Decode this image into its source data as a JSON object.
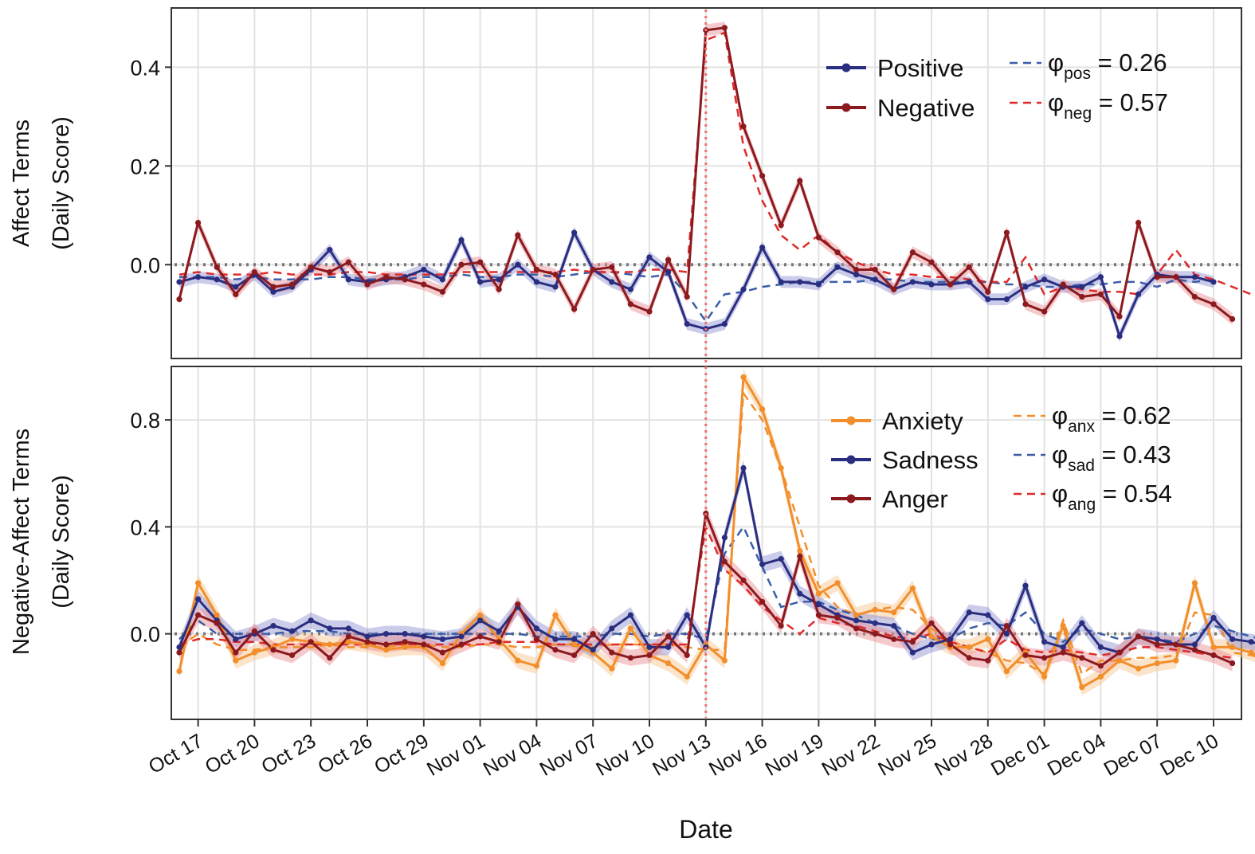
{
  "chart_data": [
    {
      "type": "line",
      "ylabel_lines": [
        "Affect Terms",
        "(Daily Score)"
      ],
      "ylim": [
        -0.19,
        0.52
      ],
      "yticks": [
        0.0,
        0.2,
        0.4
      ],
      "ytick_labels": [
        "0.0",
        "0.2",
        "0.4"
      ],
      "reference_line": 0.0,
      "grid": true,
      "legend_position": "top-right",
      "series": [
        {
          "name": "Positive",
          "color": "#2a2e80",
          "band_color": "#8c8fd0",
          "values": [
            -0.035,
            -0.025,
            -0.03,
            -0.045,
            -0.02,
            -0.055,
            -0.045,
            -0.01,
            0.03,
            -0.03,
            -0.035,
            -0.03,
            -0.025,
            -0.01,
            -0.03,
            0.05,
            -0.035,
            -0.03,
            0.0,
            -0.035,
            -0.045,
            0.065,
            -0.01,
            -0.035,
            -0.05,
            0.015,
            -0.015,
            -0.12,
            -0.13,
            -0.12,
            -0.05,
            0.035,
            -0.035,
            -0.035,
            -0.04,
            -0.005,
            -0.02,
            -0.03,
            -0.05,
            -0.035,
            -0.04,
            -0.04,
            -0.035,
            -0.07,
            -0.07,
            -0.045,
            -0.03,
            -0.045,
            -0.045,
            -0.025,
            -0.145,
            -0.06,
            -0.02,
            -0.025,
            -0.025,
            -0.035
          ]
        },
        {
          "name": "Negative",
          "color": "#8b1a1f",
          "band_color": "#e88a90",
          "values": [
            -0.07,
            0.085,
            -0.005,
            -0.06,
            -0.015,
            -0.045,
            -0.04,
            -0.005,
            -0.015,
            0.005,
            -0.04,
            -0.025,
            -0.03,
            -0.04,
            -0.055,
            0.0,
            0.005,
            -0.05,
            0.06,
            -0.01,
            -0.02,
            -0.09,
            -0.01,
            -0.005,
            -0.08,
            -0.095,
            0.01,
            -0.065,
            0.475,
            0.48,
            0.28,
            0.18,
            0.08,
            0.17,
            0.055,
            0.025,
            -0.01,
            -0.01,
            -0.05,
            0.025,
            0.005,
            -0.04,
            -0.005,
            -0.055,
            0.065,
            -0.08,
            -0.095,
            -0.04,
            -0.065,
            -0.06,
            -0.105,
            0.085,
            -0.025,
            -0.025,
            -0.065,
            -0.08,
            -0.11
          ]
        }
      ],
      "fits": [
        {
          "label": "φ",
          "subscript": "pos",
          "value_text": "= 0.26",
          "color": "#3a5ea8",
          "values": [
            -0.025,
            -0.025,
            -0.025,
            -0.03,
            -0.025,
            -0.03,
            -0.03,
            -0.03,
            -0.025,
            -0.025,
            -0.03,
            -0.03,
            -0.03,
            -0.025,
            -0.025,
            -0.02,
            -0.025,
            -0.025,
            -0.02,
            -0.02,
            -0.025,
            -0.02,
            -0.015,
            -0.015,
            -0.02,
            -0.025,
            -0.02,
            -0.06,
            -0.115,
            -0.06,
            -0.055,
            -0.045,
            -0.04,
            -0.035,
            -0.035,
            -0.035,
            -0.035,
            -0.03,
            -0.03,
            -0.035,
            -0.035,
            -0.035,
            -0.035,
            -0.035,
            -0.04,
            -0.04,
            -0.045,
            -0.045,
            -0.04,
            -0.04,
            -0.035,
            -0.035,
            -0.045,
            -0.03,
            -0.035,
            -0.03
          ]
        },
        {
          "label": "φ",
          "subscript": "neg",
          "value_text": "= 0.57",
          "color": "#e02a2a",
          "values": [
            -0.02,
            -0.015,
            -0.02,
            -0.02,
            -0.02,
            -0.015,
            -0.02,
            -0.02,
            -0.02,
            -0.015,
            -0.015,
            -0.02,
            -0.02,
            -0.02,
            -0.02,
            -0.015,
            -0.015,
            -0.015,
            -0.015,
            -0.015,
            -0.015,
            -0.01,
            -0.015,
            -0.015,
            -0.015,
            -0.01,
            -0.01,
            -0.015,
            0.455,
            0.47,
            0.24,
            0.13,
            0.06,
            0.03,
            0.06,
            0.025,
            0.005,
            -0.01,
            -0.02,
            -0.02,
            -0.025,
            -0.025,
            -0.03,
            -0.035,
            -0.035,
            0.015,
            -0.06,
            -0.045,
            -0.05,
            -0.055,
            -0.055,
            -0.06,
            -0.02,
            0.03,
            -0.02,
            -0.03,
            -0.045,
            -0.06
          ]
        }
      ]
    },
    {
      "type": "line",
      "ylabel_lines": [
        "Negative-Affect Terms",
        "(Daily Score)"
      ],
      "xlabel": "Date",
      "ylim": [
        -0.32,
        1.0
      ],
      "yticks": [
        0.0,
        0.4,
        0.8
      ],
      "ytick_labels": [
        "0.0",
        "0.4",
        "0.8"
      ],
      "reference_line": 0.0,
      "grid": true,
      "legend_position": "top-right",
      "x_tick_labels": [
        "Oct 17",
        "Oct 20",
        "Oct 23",
        "Oct 26",
        "Oct 29",
        "Nov 01",
        "Nov 04",
        "Nov 07",
        "Nov 10",
        "Nov 13",
        "Nov 16",
        "Nov 19",
        "Nov 22",
        "Nov 25",
        "Nov 28",
        "Dec 01",
        "Dec 04",
        "Dec 07",
        "Dec 10"
      ],
      "event_date": "Nov 13",
      "series": [
        {
          "name": "Anxiety",
          "color": "#f28e2b",
          "band_color": "#f7c48a",
          "values": [
            -0.14,
            0.19,
            0.07,
            -0.1,
            -0.07,
            -0.05,
            -0.02,
            -0.03,
            -0.04,
            -0.03,
            -0.04,
            -0.06,
            -0.05,
            -0.05,
            -0.11,
            0.0,
            0.07,
            -0.02,
            -0.1,
            -0.12,
            0.07,
            -0.04,
            -0.07,
            -0.13,
            0.02,
            -0.08,
            -0.11,
            -0.16,
            -0.04,
            -0.1,
            0.96,
            0.84,
            0.62,
            0.31,
            0.15,
            0.19,
            0.07,
            0.09,
            0.08,
            0.17,
            -0.01,
            -0.05,
            -0.05,
            -0.02,
            -0.14,
            -0.07,
            -0.16,
            0.03,
            -0.2,
            -0.16,
            -0.1,
            -0.13,
            -0.11,
            -0.1,
            0.19,
            -0.05,
            -0.05,
            -0.07,
            -0.1,
            -0.13
          ]
        },
        {
          "name": "Sadness",
          "color": "#2a2e80",
          "band_color": "#8c8fd0",
          "values": [
            -0.05,
            0.13,
            0.05,
            -0.02,
            0.0,
            0.03,
            0.01,
            0.05,
            0.02,
            0.02,
            -0.01,
            0.0,
            0.0,
            -0.01,
            -0.02,
            -0.01,
            0.05,
            0.01,
            0.1,
            0.02,
            -0.02,
            -0.02,
            -0.06,
            0.02,
            0.07,
            -0.05,
            -0.05,
            0.07,
            -0.05,
            0.36,
            0.62,
            0.26,
            0.28,
            0.15,
            0.11,
            0.07,
            0.05,
            0.04,
            0.03,
            -0.07,
            -0.04,
            -0.02,
            0.08,
            0.07,
            0.0,
            0.18,
            -0.03,
            -0.05,
            0.04,
            -0.05,
            -0.07,
            -0.01,
            -0.02,
            -0.04,
            -0.04,
            0.06,
            -0.02,
            -0.03,
            -0.05,
            -0.07
          ]
        },
        {
          "name": "Anger",
          "color": "#8b1a1f",
          "band_color": "#e88a90",
          "values": [
            -0.07,
            0.07,
            0.04,
            -0.07,
            0.01,
            -0.06,
            -0.08,
            -0.03,
            -0.09,
            -0.01,
            -0.03,
            -0.04,
            -0.03,
            -0.04,
            -0.07,
            -0.04,
            -0.01,
            -0.03,
            0.11,
            -0.02,
            -0.06,
            -0.08,
            0.0,
            -0.07,
            -0.09,
            -0.08,
            -0.01,
            -0.08,
            0.45,
            0.27,
            0.2,
            0.12,
            0.03,
            0.29,
            0.07,
            0.06,
            0.02,
            0.0,
            -0.02,
            -0.03,
            0.04,
            -0.04,
            -0.09,
            -0.1,
            0.03,
            -0.08,
            -0.09,
            -0.07,
            -0.09,
            -0.12,
            -0.07,
            -0.01,
            -0.04,
            -0.04,
            -0.06,
            -0.08,
            -0.11
          ]
        }
      ],
      "fits": [
        {
          "label": "φ",
          "subscript": "anx",
          "value_text": "= 0.62",
          "color": "#f28e2b",
          "values": [
            -0.05,
            0.0,
            -0.04,
            -0.06,
            -0.06,
            -0.05,
            -0.05,
            -0.05,
            -0.04,
            -0.05,
            -0.05,
            -0.05,
            -0.04,
            -0.04,
            -0.05,
            -0.05,
            -0.04,
            -0.04,
            -0.05,
            -0.05,
            -0.04,
            -0.04,
            -0.05,
            -0.04,
            -0.04,
            -0.04,
            -0.04,
            -0.05,
            -0.06,
            -0.06,
            0.9,
            0.8,
            0.62,
            0.4,
            0.18,
            0.1,
            0.07,
            0.09,
            0.1,
            0.09,
            0.02,
            -0.03,
            -0.05,
            -0.07,
            -0.1,
            -0.11,
            -0.15,
            0.05,
            -0.15,
            -0.1,
            -0.1,
            -0.09,
            -0.09,
            -0.08,
            0.08,
            0.07,
            -0.07,
            -0.08,
            -0.1
          ]
        },
        {
          "label": "φ",
          "subscript": "sad",
          "value_text": "= 0.43",
          "color": "#3a5ea8",
          "values": [
            -0.02,
            0.05,
            0.0,
            0.0,
            0.0,
            0.0,
            0.01,
            0.01,
            0.01,
            0.0,
            0.0,
            0.0,
            0.0,
            0.0,
            0.0,
            0.0,
            0.0,
            0.0,
            0.0,
            -0.01,
            -0.01,
            -0.01,
            -0.01,
            0.0,
            0.0,
            -0.01,
            0.0,
            0.0,
            -0.02,
            0.3,
            0.4,
            0.25,
            0.1,
            0.12,
            0.12,
            0.09,
            0.07,
            0.04,
            0.03,
            0.0,
            -0.02,
            -0.02,
            0.02,
            0.04,
            0.03,
            0.08,
            0.0,
            -0.03,
            0.02,
            0.0,
            -0.02,
            -0.01,
            -0.02,
            -0.03,
            0.0,
            0.03,
            0.01,
            -0.01,
            -0.03
          ]
        },
        {
          "label": "φ",
          "subscript": "ang",
          "value_text": "= 0.54",
          "color": "#e02a2a",
          "values": [
            -0.04,
            -0.02,
            -0.02,
            -0.03,
            -0.03,
            -0.04,
            -0.04,
            -0.04,
            -0.04,
            -0.04,
            -0.04,
            -0.04,
            -0.04,
            -0.04,
            -0.04,
            -0.04,
            -0.04,
            -0.03,
            -0.03,
            -0.03,
            -0.04,
            -0.04,
            -0.04,
            -0.04,
            -0.04,
            -0.04,
            -0.04,
            -0.04,
            0.4,
            0.24,
            0.18,
            0.1,
            0.05,
            0.0,
            0.06,
            0.04,
            0.03,
            0.01,
            -0.01,
            -0.02,
            0.0,
            -0.03,
            -0.05,
            -0.07,
            -0.02,
            -0.06,
            -0.07,
            -0.06,
            -0.07,
            -0.08,
            -0.07,
            -0.05,
            -0.05,
            -0.06,
            -0.07,
            -0.08,
            -0.09
          ]
        }
      ]
    }
  ]
}
